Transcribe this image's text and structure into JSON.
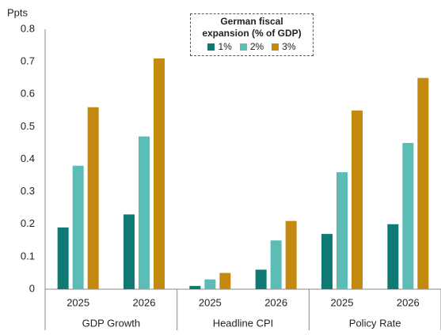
{
  "chart_data": {
    "type": "bar",
    "y_label": "Ppts",
    "legend_title": "German fiscal expansion (% of GDP)",
    "groups": [
      "GDP Growth",
      "Headline CPI",
      "Policy Rate"
    ],
    "categories": [
      "2025",
      "2026",
      "2025",
      "2026",
      "2025",
      "2026"
    ],
    "series": [
      {
        "name": "1%",
        "color": "#0f7a73",
        "values": [
          0.19,
          0.23,
          0.01,
          0.06,
          0.17,
          0.2
        ]
      },
      {
        "name": "2%",
        "color": "#5bbdb5",
        "values": [
          0.38,
          0.47,
          0.03,
          0.15,
          0.36,
          0.45
        ]
      },
      {
        "name": "3%",
        "color": "#c4890f",
        "values": [
          0.56,
          0.71,
          0.05,
          0.21,
          0.55,
          0.65
        ]
      }
    ],
    "ylim": [
      0,
      0.8
    ],
    "yticks": [
      0,
      0.1,
      0.2,
      0.3,
      0.4,
      0.5,
      0.6,
      0.7,
      0.8
    ]
  }
}
